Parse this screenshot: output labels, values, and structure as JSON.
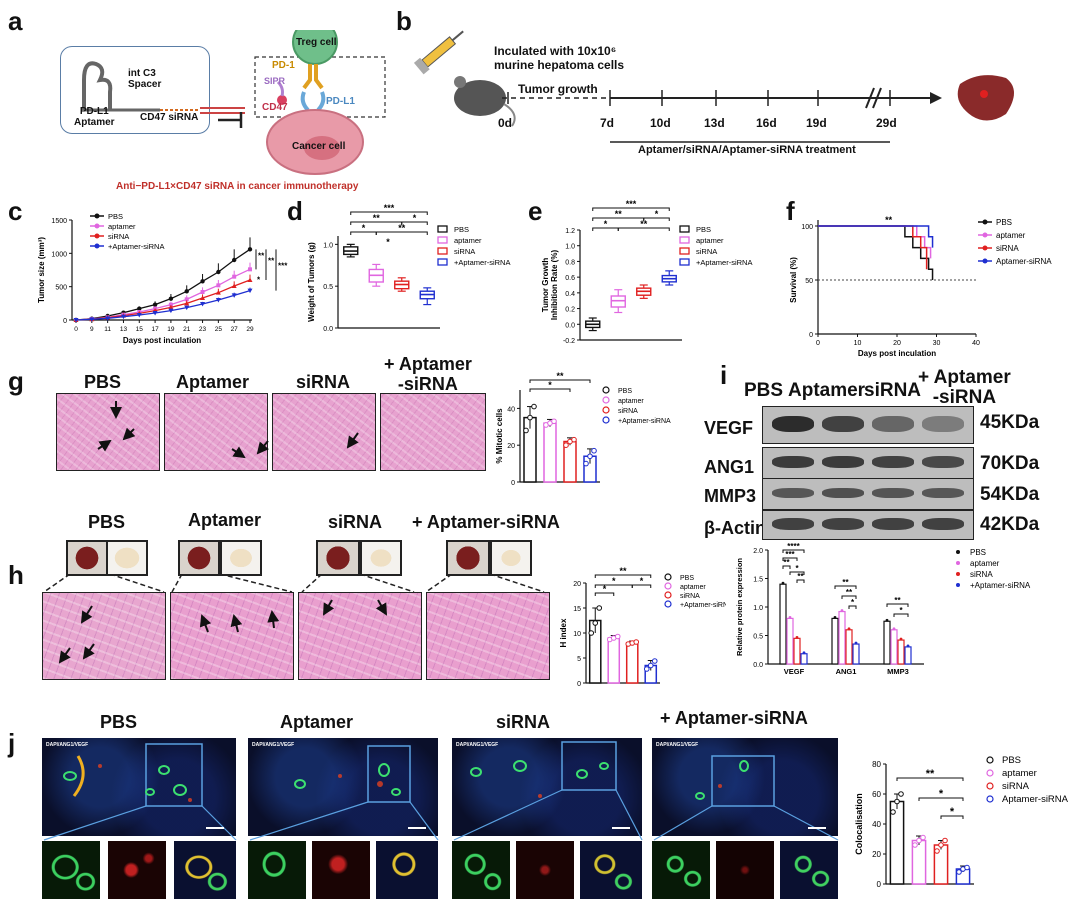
{
  "panel_labels": [
    "a",
    "b",
    "c",
    "d",
    "e",
    "f",
    "g",
    "h",
    "i",
    "j"
  ],
  "panel_a": {
    "spacer": "int C3\nSpacer",
    "aptamer": "PD-L1\nAptamer",
    "sirna": "CD47 siRNA",
    "treg": "Treg cell",
    "pd1": "PD-1",
    "sipr": "SIPR",
    "cd47": "CD47",
    "pdl1": "PD-L1",
    "cancer": "Cancer cell",
    "caption": "Anti−PD-L1×CD47 siRNA in cancer immunotherapy"
  },
  "panel_b": {
    "inject": "Inculated with 10x10⁶\nmurine hepatoma cells",
    "growth": "Tumor growth",
    "days": [
      "0d",
      "7d",
      "10d",
      "13d",
      "16d",
      "19d",
      "29d"
    ],
    "treatment": "Aptamer/siRNA/Aptamer-siRNA treatment"
  },
  "colors": {
    "pbs": "#111111",
    "aptamer": "#e066e0",
    "sirna": "#e02020",
    "combo": "#1f2fd0"
  },
  "charts": {
    "c": {
      "type": "line",
      "ylabel": "Tumor size (mm³)",
      "xlabel": "Days post inculation",
      "xticks": [
        "0",
        "9",
        "11",
        "13",
        "15",
        "17",
        "19",
        "21",
        "23",
        "25",
        "27",
        "29"
      ],
      "yticks": [
        "0",
        "500",
        "1000",
        "1500"
      ],
      "ylim": [
        0,
        1500
      ],
      "legend": [
        "PBS",
        "aptamer",
        "siRNA",
        "+Aptamer-siRNA"
      ],
      "series": [
        {
          "name": "PBS",
          "values": [
            0,
            20,
            60,
            110,
            170,
            230,
            320,
            430,
            580,
            720,
            900,
            1060
          ],
          "err": [
            0,
            8,
            15,
            25,
            35,
            50,
            70,
            90,
            110,
            130,
            160,
            180
          ]
        },
        {
          "name": "aptamer",
          "values": [
            0,
            15,
            40,
            80,
            120,
            170,
            230,
            310,
            420,
            520,
            650,
            760
          ],
          "err": [
            0,
            6,
            10,
            18,
            25,
            35,
            45,
            60,
            70,
            80,
            90,
            100
          ]
        },
        {
          "name": "siRNA",
          "values": [
            0,
            12,
            35,
            65,
            100,
            140,
            190,
            250,
            330,
            410,
            510,
            600
          ],
          "err": [
            0,
            5,
            9,
            14,
            20,
            28,
            35,
            45,
            55,
            60,
            70,
            80
          ]
        },
        {
          "name": "+Aptamer-siRNA",
          "values": [
            0,
            10,
            25,
            50,
            75,
            105,
            140,
            185,
            240,
            300,
            370,
            440
          ],
          "err": [
            0,
            4,
            7,
            10,
            14,
            18,
            22,
            28,
            32,
            36,
            40,
            45
          ]
        }
      ],
      "sig": [
        "**",
        "**",
        "***",
        "*"
      ]
    },
    "d": {
      "type": "box",
      "ylabel": "Weight of Tumors (g)",
      "yticks": [
        "0.0",
        "0.5",
        "1.0"
      ],
      "ylim": [
        0,
        1.1
      ],
      "legend": [
        "PBS",
        "aptamer",
        "siRNA",
        "+Aptamer-siRNA"
      ],
      "boxes": [
        {
          "name": "PBS",
          "min": 0.85,
          "q1": 0.88,
          "med": 0.92,
          "q3": 0.97,
          "max": 1.0
        },
        {
          "name": "aptamer",
          "min": 0.5,
          "q1": 0.55,
          "med": 0.63,
          "q3": 0.7,
          "max": 0.76
        },
        {
          "name": "siRNA",
          "min": 0.44,
          "q1": 0.47,
          "med": 0.52,
          "q3": 0.56,
          "max": 0.6
        },
        {
          "name": "+Aptamer-siRNA",
          "min": 0.28,
          "q1": 0.35,
          "med": 0.4,
          "q3": 0.44,
          "max": 0.48
        }
      ],
      "sig": [
        "***",
        "**",
        "*",
        "*",
        "**",
        "*"
      ]
    },
    "e": {
      "type": "box",
      "ylabel": "Tumor Growth\nInhibition Rate (%)",
      "yticks": [
        "-0.2",
        "0.0",
        "0.2",
        "0.4",
        "0.6",
        "0.8",
        "1.0",
        "1.2"
      ],
      "ylim": [
        -0.2,
        1.2
      ],
      "legend": [
        "PBS",
        "aptamer",
        "siRNA",
        "+Aptamer-siRNA"
      ],
      "boxes": [
        {
          "name": "PBS",
          "min": -0.08,
          "q1": -0.04,
          "med": 0.0,
          "q3": 0.04,
          "max": 0.08
        },
        {
          "name": "aptamer",
          "min": 0.15,
          "q1": 0.22,
          "med": 0.3,
          "q3": 0.36,
          "max": 0.44
        },
        {
          "name": "siRNA",
          "min": 0.33,
          "q1": 0.37,
          "med": 0.42,
          "q3": 0.46,
          "max": 0.5
        },
        {
          "name": "+Aptamer-siRNA",
          "min": 0.5,
          "q1": 0.54,
          "med": 0.58,
          "q3": 0.62,
          "max": 0.68
        }
      ],
      "sig": [
        "***",
        "**",
        "*",
        "*",
        "**"
      ]
    },
    "f": {
      "type": "line",
      "ylabel": "Survival (%)",
      "xlabel": "Days post inculation",
      "xticks": [
        "0",
        "10",
        "20",
        "30",
        "40"
      ],
      "yticks": [
        "0",
        "50",
        "100"
      ],
      "ylim": [
        0,
        100
      ],
      "xlim": [
        0,
        40
      ],
      "legend": [
        "PBS",
        "aptamer",
        "siRNA",
        "Aptamer-siRNA"
      ],
      "sig": "**",
      "series": [
        {
          "name": "PBS",
          "x": [
            0,
            20,
            22,
            24,
            26,
            28,
            29
          ],
          "y": [
            100,
            100,
            90,
            80,
            70,
            60,
            50
          ]
        },
        {
          "name": "aptamer",
          "x": [
            0,
            23,
            25,
            27,
            28.5
          ],
          "y": [
            100,
            100,
            90,
            80,
            70
          ]
        },
        {
          "name": "siRNA",
          "x": [
            0,
            22,
            24,
            26,
            27.5
          ],
          "y": [
            100,
            100,
            90,
            80,
            60
          ]
        },
        {
          "name": "Aptamer-siRNA",
          "x": [
            0,
            26,
            28,
            29
          ],
          "y": [
            100,
            100,
            90,
            80
          ]
        }
      ]
    },
    "g": {
      "type": "bar",
      "ylabel": "% Mitotic cells",
      "yticks": [
        "0",
        "20",
        "40"
      ],
      "ylim": [
        0,
        50
      ],
      "legend": [
        "PBS",
        "aptamer",
        "siRNA",
        "+Aptamer-siRNA"
      ],
      "values": [
        35,
        32,
        22,
        14
      ],
      "err": [
        6,
        2,
        2,
        4
      ],
      "points": [
        [
          28,
          35,
          41
        ],
        [
          31,
          32,
          33
        ],
        [
          20,
          22,
          23
        ],
        [
          10,
          14,
          17
        ]
      ],
      "sig": [
        "**",
        "*"
      ]
    },
    "h": {
      "type": "bar",
      "ylabel": "H index",
      "yticks": [
        "0",
        "5",
        "10",
        "15",
        "20"
      ],
      "ylim": [
        0,
        20
      ],
      "legend": [
        "PBS",
        "aptamer",
        "siRNA",
        "+Aptamer-siRNA"
      ],
      "values": [
        12.5,
        9,
        8,
        3.5
      ],
      "err": [
        2.5,
        0.5,
        0.4,
        1
      ],
      "points": [
        [
          10,
          12,
          15
        ],
        [
          8.7,
          9,
          9.3
        ],
        [
          7.8,
          8,
          8.2
        ],
        [
          2.8,
          3.5,
          4.4
        ]
      ],
      "sig": [
        "**",
        "*",
        "*",
        "*"
      ]
    },
    "i": {
      "type": "bar",
      "ylabel": "Relative protein expression",
      "yticks": [
        "0.0",
        "0.5",
        "1.0",
        "1.5",
        "2.0"
      ],
      "ylim": [
        0,
        2.0
      ],
      "categories": [
        "VEGF",
        "ANG1",
        "MMP3"
      ],
      "legend": [
        "PBS",
        "aptamer",
        "siRNA",
        "+Aptamer-siRNA"
      ],
      "series": [
        {
          "name": "PBS",
          "values": [
            1.4,
            0.8,
            0.75
          ]
        },
        {
          "name": "aptamer",
          "values": [
            0.8,
            0.92,
            0.6
          ]
        },
        {
          "name": "siRNA",
          "values": [
            0.45,
            0.6,
            0.42
          ]
        },
        {
          "name": "+Aptamer-siRNA",
          "values": [
            0.18,
            0.35,
            0.3
          ]
        }
      ],
      "sig": [
        "****",
        "***",
        "**",
        "*",
        "**",
        "*",
        "**",
        "**",
        "*",
        "**",
        "*"
      ]
    },
    "j": {
      "type": "bar",
      "ylabel": "Colocalisation",
      "yticks": [
        "0",
        "20",
        "40",
        "60",
        "80"
      ],
      "ylim": [
        0,
        80
      ],
      "legend": [
        "PBS",
        "aptamer",
        "siRNA",
        "Aptamer-siRNA"
      ],
      "values": [
        55,
        29,
        26,
        10
      ],
      "err": [
        5,
        3,
        3,
        2
      ],
      "points": [
        [
          48,
          55,
          60
        ],
        [
          26,
          29,
          31
        ],
        [
          22,
          26,
          29
        ],
        [
          8,
          10,
          11
        ]
      ],
      "sig": [
        "**",
        "*",
        "*"
      ]
    }
  },
  "panel_g": {
    "titles": [
      "PBS",
      "Aptamer",
      "siRNA",
      "+ Aptamer\n-siRNA"
    ]
  },
  "panel_h": {
    "titles": [
      "PBS",
      "Aptamer",
      "siRNA",
      "+ Aptamer-siRNA"
    ]
  },
  "panel_i": {
    "columns": [
      "PBS",
      "Aptamer",
      "siRNA",
      "+ Aptamer\n-siRNA"
    ],
    "rows": [
      {
        "name": "VEGF",
        "kda": "45KDa"
      },
      {
        "name": "ANG1",
        "kda": "70KDa"
      },
      {
        "name": "MMP3",
        "kda": "54KDa"
      },
      {
        "name": "β-Actin",
        "kda": "42KDa"
      }
    ]
  },
  "panel_j": {
    "titles": [
      "PBS",
      "Aptamer",
      "siRNA",
      "+ Aptamer-siRNA"
    ],
    "stain": "DAPI/ANG1/VEGF"
  }
}
